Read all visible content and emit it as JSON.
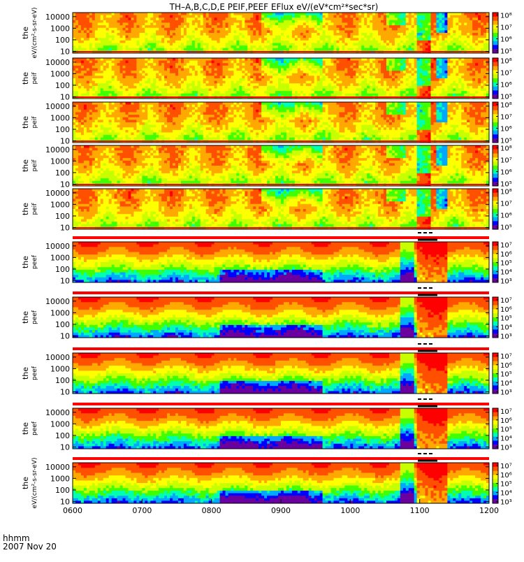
{
  "title": "TH–A,B,C,D,E  PEIF,PEEF  EFlux  eV/(eV*cm²*sec*sr)",
  "footer": {
    "label_line1": "hhmm",
    "label_line2": "2007 Nov 20"
  },
  "colors": {
    "scale": [
      "#6a00a0",
      "#0000ff",
      "#00a8ff",
      "#00ffb0",
      "#40ff00",
      "#c8ff00",
      "#ffff00",
      "#ffa800",
      "#ff5000",
      "#ff0000"
    ],
    "panel_bar": "#ff0000",
    "marker": "#000000"
  },
  "chart_data": {
    "type": "heatmap",
    "x_ticks": [
      "0600",
      "0700",
      "0800",
      "0900",
      "1000",
      "1100",
      "1200"
    ],
    "x_range_hours": [
      6,
      12
    ],
    "y_ticks": [
      "10",
      "100",
      "1000",
      "10000"
    ],
    "y_scale": "log",
    "panels": [
      {
        "name": "peif-a",
        "ylabel_short": "the",
        "ylabel_units": "eV/(cm²-s-sr-eV)",
        "cbar_ticks": [
          "10⁵",
          "10⁶",
          "10⁷",
          "10⁸"
        ],
        "cbar_log_range": [
          4.8,
          8.2
        ],
        "top_bar": false
      },
      {
        "name": "peif-b",
        "ylabel_short": "the",
        "ylabel_units": "peif",
        "cbar_ticks": [
          "10⁵",
          "10⁶",
          "10⁷",
          "10⁸"
        ],
        "cbar_log_range": [
          4.8,
          8.2
        ],
        "top_bar": false
      },
      {
        "name": "peif-c",
        "ylabel_short": "the",
        "ylabel_units": "peif",
        "cbar_ticks": [
          "10⁵",
          "10⁶",
          "10⁷",
          "10⁸"
        ],
        "cbar_log_range": [
          4.8,
          8.2
        ],
        "top_bar": false
      },
      {
        "name": "peif-d",
        "ylabel_short": "the",
        "ylabel_units": "peif",
        "cbar_ticks": [
          "10⁵",
          "10⁶",
          "10⁷",
          "10⁸"
        ],
        "cbar_log_range": [
          4.8,
          8.2
        ],
        "top_bar": false
      },
      {
        "name": "peif-e",
        "ylabel_short": "the",
        "ylabel_units": "peif",
        "cbar_ticks": [
          "10⁵",
          "10⁶",
          "10⁷",
          "10⁸"
        ],
        "cbar_log_range": [
          4.8,
          8.2
        ],
        "top_bar": false
      },
      {
        "name": "peef-a",
        "ylabel_short": "the",
        "ylabel_units": "peef",
        "cbar_ticks": [
          "10³",
          "10⁴",
          "10⁵",
          "10⁶",
          "10⁷"
        ],
        "cbar_log_range": [
          2.8,
          7.3
        ],
        "top_bar": true
      },
      {
        "name": "peef-b",
        "ylabel_short": "the",
        "ylabel_units": "peef",
        "cbar_ticks": [
          "10³",
          "10⁴",
          "10⁵",
          "10⁶",
          "10⁷"
        ],
        "cbar_log_range": [
          2.8,
          7.3
        ],
        "top_bar": true
      },
      {
        "name": "peef-c",
        "ylabel_short": "the",
        "ylabel_units": "peef",
        "cbar_ticks": [
          "10³",
          "10⁴",
          "10⁵",
          "10⁶",
          "10⁷"
        ],
        "cbar_log_range": [
          2.8,
          7.3
        ],
        "top_bar": true
      },
      {
        "name": "peef-d",
        "ylabel_short": "the",
        "ylabel_units": "peef",
        "cbar_ticks": [
          "10³",
          "10⁴",
          "10⁵",
          "10⁶",
          "10⁷"
        ],
        "cbar_log_range": [
          2.8,
          7.3
        ],
        "top_bar": true
      },
      {
        "name": "peef-e",
        "ylabel_short": "the",
        "ylabel_units": "eV/(cm²-s-sr-eV)",
        "cbar_ticks": [
          "10³",
          "10⁴",
          "10⁵",
          "10⁶",
          "10⁷"
        ],
        "cbar_log_range": [
          2.8,
          7.3
        ],
        "top_bar": true
      }
    ]
  }
}
